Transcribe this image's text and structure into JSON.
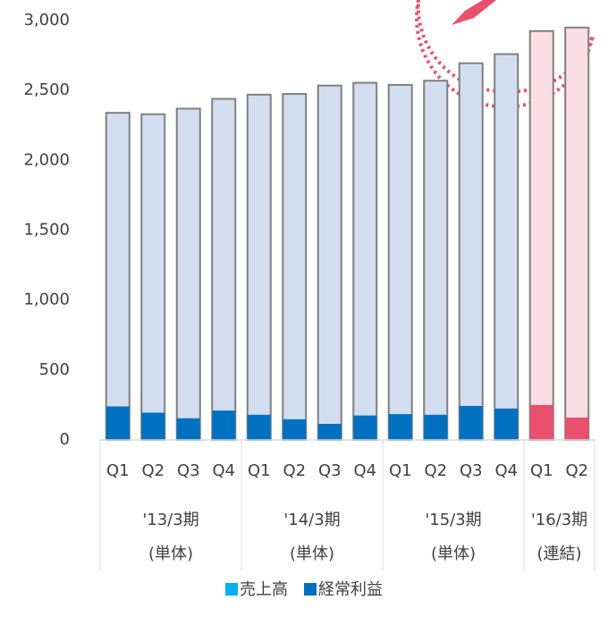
{
  "chart_data": {
    "type": "bar",
    "groups": [
      {
        "name": "'13/3期",
        "note": "(単体)",
        "categories": [
          "Q1",
          "Q2",
          "Q3",
          "Q4"
        ]
      },
      {
        "name": "'14/3期",
        "note": "(単体)",
        "categories": [
          "Q1",
          "Q2",
          "Q3",
          "Q4"
        ]
      },
      {
        "name": "'15/3期",
        "note": "(単体)",
        "categories": [
          "Q1",
          "Q2",
          "Q3",
          "Q4"
        ]
      },
      {
        "name": "'16/3期",
        "note": "(連結)",
        "categories": [
          "Q1",
          "Q2"
        ],
        "highlight": true
      }
    ],
    "series": [
      {
        "name": "売上高",
        "color": "#d2deef",
        "highlight_color": "#fbdde6",
        "legend_color": "#00b0f0",
        "values": [
          2340,
          2330,
          2370,
          2440,
          2470,
          2475,
          2535,
          2555,
          2540,
          2570,
          2695,
          2760,
          2925,
          2950
        ]
      },
      {
        "name": "経常利益",
        "color": "#0070c0",
        "highlight_color": "#e8506e",
        "legend_color": "#0070c0",
        "values": [
          240,
          195,
          155,
          210,
          180,
          148,
          115,
          175,
          185,
          180,
          243,
          225,
          250,
          160
        ]
      }
    ],
    "ylim": [
      0,
      3000
    ],
    "yticks": [
      0,
      500,
      {
        "value": 1000,
        "label": "1,000"
      },
      {
        "value": 1500,
        "label": "1,500"
      },
      {
        "value": 2000,
        "label": "2,000"
      },
      {
        "value": 2500,
        "label": "2,500"
      },
      {
        "value": 3000,
        "label": "3,000"
      }
    ],
    "grid": false
  }
}
